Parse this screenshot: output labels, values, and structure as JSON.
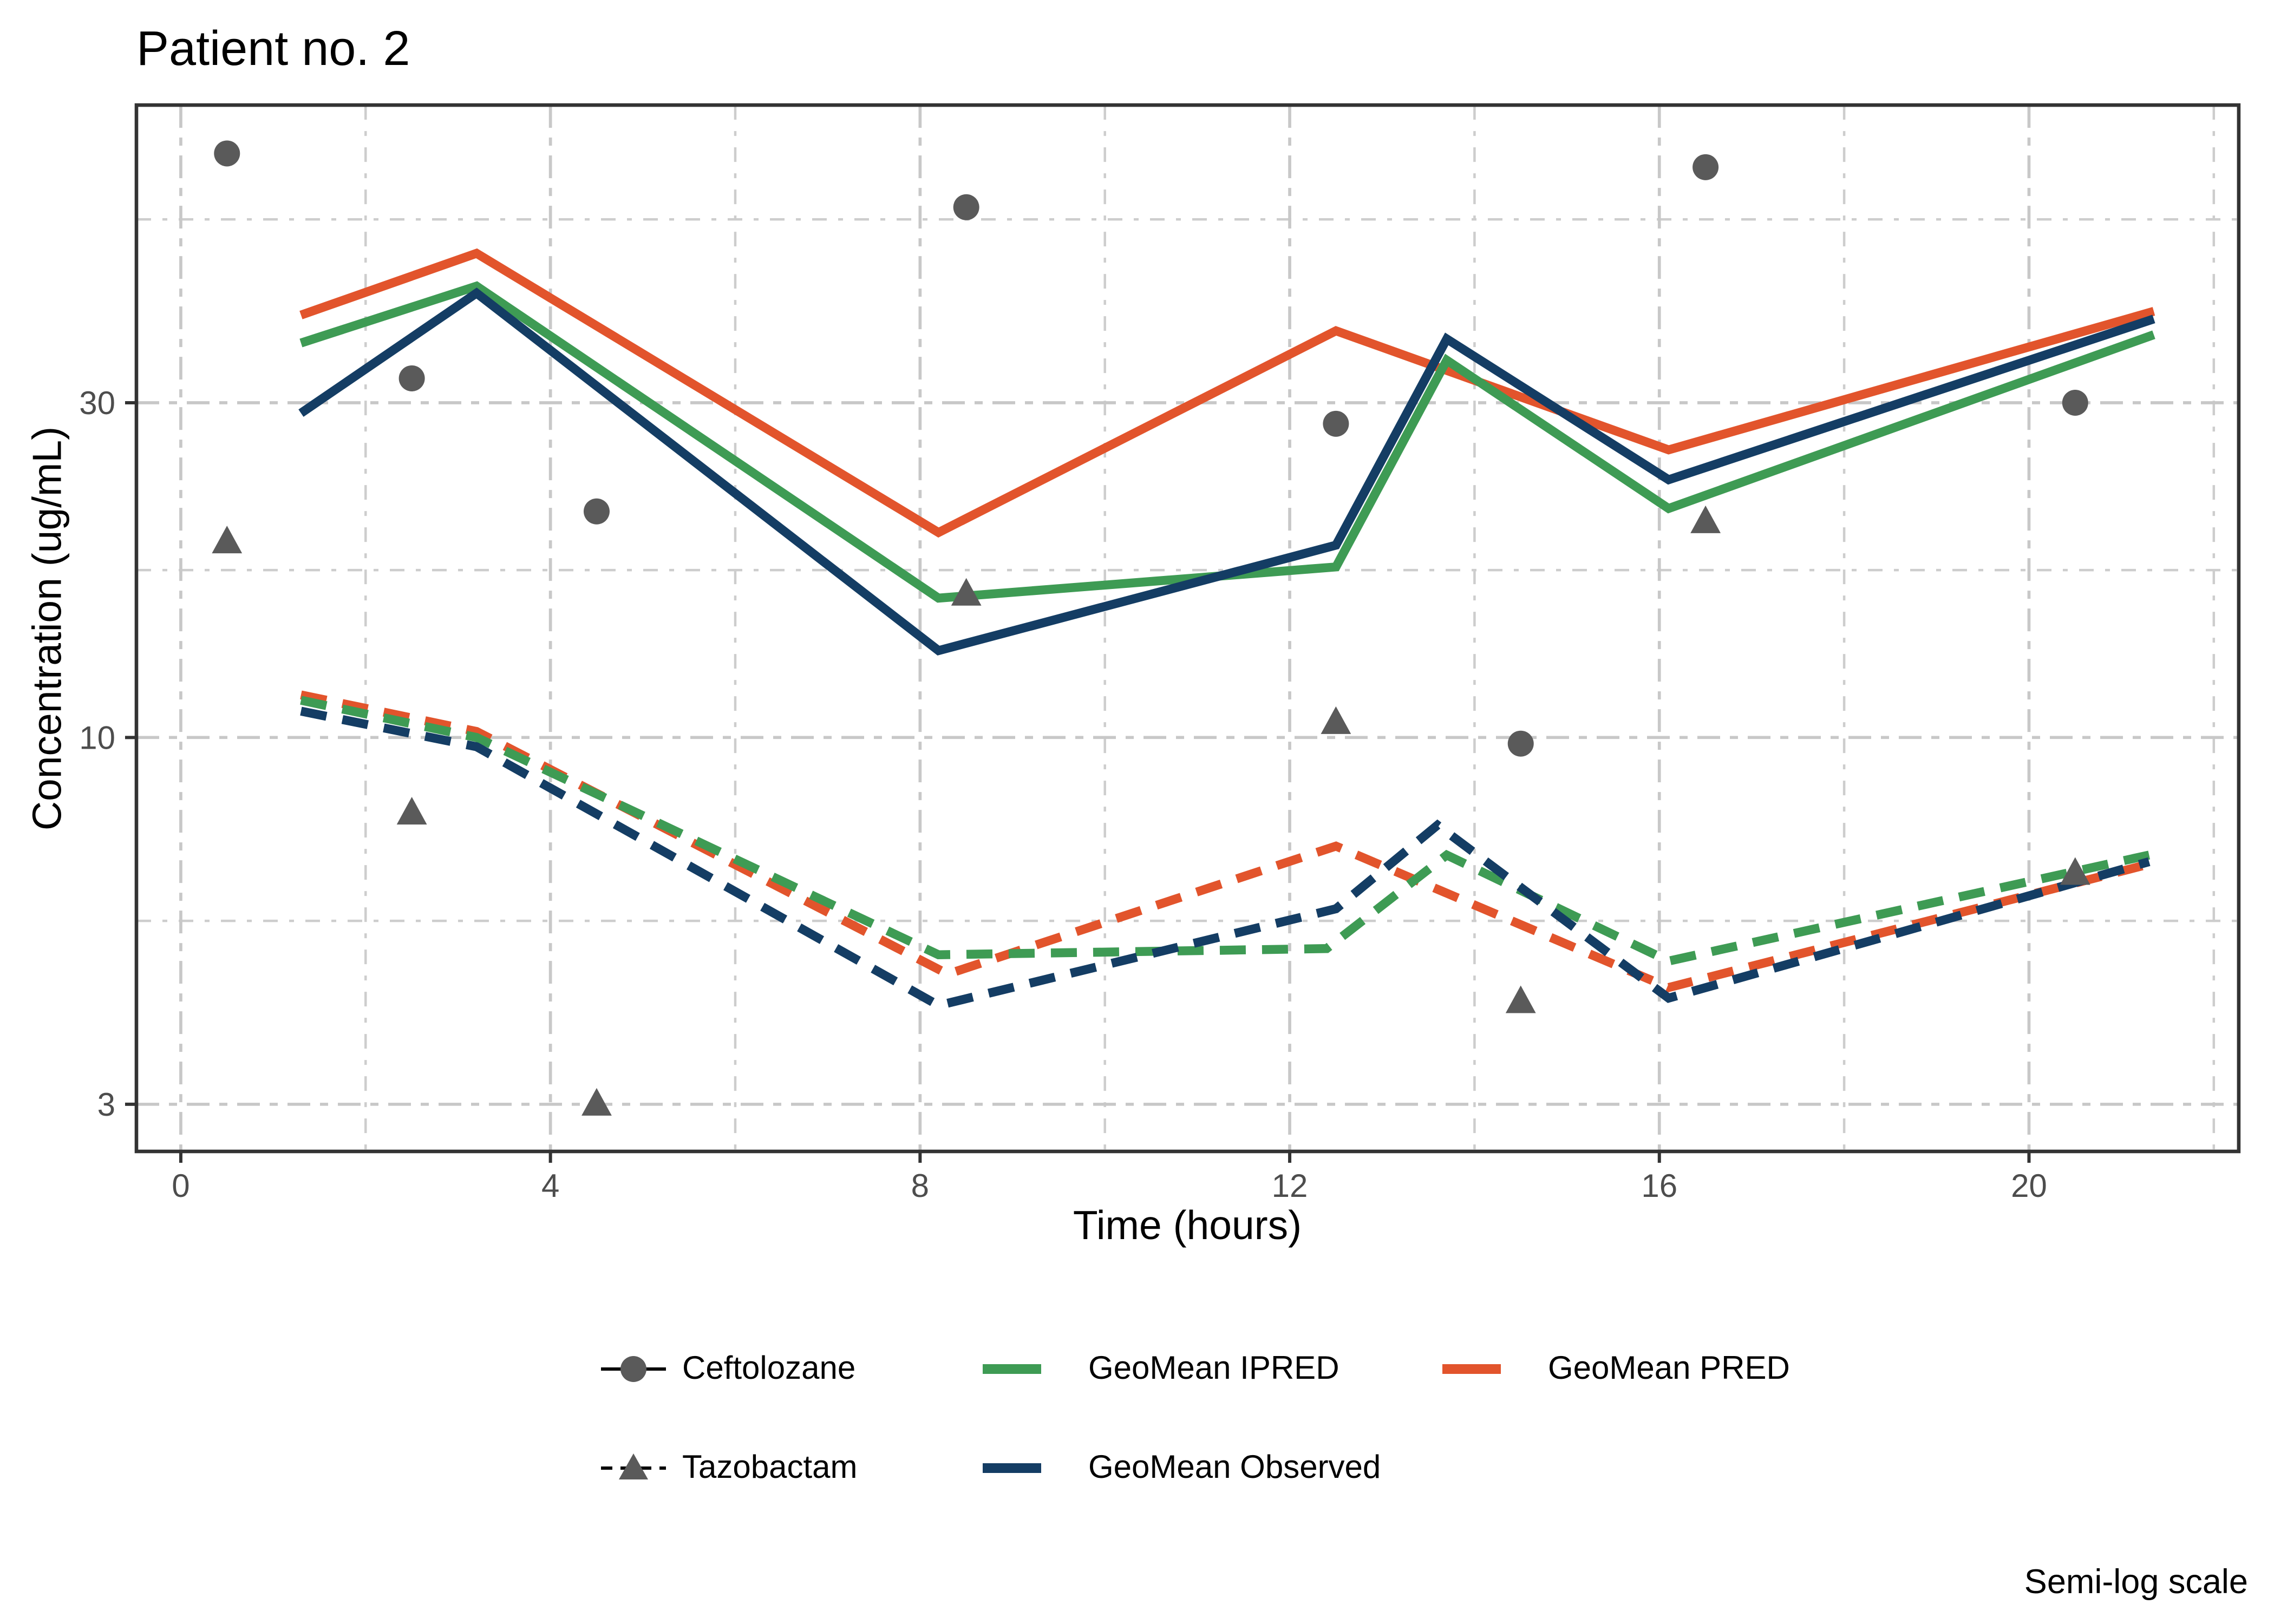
{
  "chart_data": {
    "type": "line",
    "title": "Patient no. 2",
    "xlabel": "Time (hours)",
    "ylabel": "Concentration (ug/mL)",
    "note": "Semi-log scale",
    "log_y": true,
    "grid": true,
    "legend_position": "bottom",
    "xlim": [
      -0.48,
      22.27
    ],
    "ylim": [
      2.57,
      79.7
    ],
    "x_ticks": [
      0,
      4,
      8,
      12,
      16,
      20
    ],
    "x_minor": [
      2,
      6,
      10,
      14,
      18,
      22
    ],
    "y_ticks": [
      3,
      10,
      30
    ],
    "y_minor": [
      5.477,
      17.32,
      54.77
    ],
    "colors": {
      "pred": "#E2542C",
      "ipred": "#3E9B54",
      "observed": "#143D64",
      "marker": "#5A5A5A",
      "grid_major": "#C8C8C8",
      "grid_minor": "#CDCDCD",
      "panel_border": "#333333",
      "tick_label": "#4D4D4D"
    },
    "series": [
      {
        "name": "GeoMean PRED",
        "drug": "Ceftolozane",
        "style": "solid",
        "color": "#E2542C",
        "points": [
          [
            1.3,
            40
          ],
          [
            3.2,
            49
          ],
          [
            8.2,
            19.6
          ],
          [
            12.5,
            38
          ],
          [
            16.1,
            25.7
          ],
          [
            21.35,
            40.5
          ]
        ]
      },
      {
        "name": "GeoMean IPRED",
        "drug": "Ceftolozane",
        "style": "solid",
        "color": "#3E9B54",
        "points": [
          [
            1.3,
            36.5
          ],
          [
            3.2,
            44
          ],
          [
            8.2,
            15.8
          ],
          [
            12.5,
            17.5
          ],
          [
            13.7,
            34.5
          ],
          [
            16.1,
            21.2
          ],
          [
            21.35,
            37.5
          ]
        ]
      },
      {
        "name": "GeoMean Observed",
        "drug": "Ceftolozane",
        "style": "solid",
        "color": "#143D64",
        "points": [
          [
            1.3,
            29
          ],
          [
            3.2,
            43
          ],
          [
            8.2,
            13.3
          ],
          [
            12.5,
            18.8
          ],
          [
            13.7,
            37
          ],
          [
            16.1,
            23.3
          ],
          [
            21.35,
            39.5
          ]
        ]
      },
      {
        "name": "GeoMean PRED",
        "drug": "Tazobactam",
        "style": "dashed",
        "color": "#E2542C",
        "points": [
          [
            1.3,
            11.5
          ],
          [
            3.2,
            10.2
          ],
          [
            8.3,
            4.6
          ],
          [
            12.5,
            7.0
          ],
          [
            16.1,
            4.4
          ],
          [
            21.3,
            6.6
          ]
        ]
      },
      {
        "name": "GeoMean IPRED",
        "drug": "Tazobactam",
        "style": "dashed",
        "color": "#3E9B54",
        "points": [
          [
            1.3,
            11.3
          ],
          [
            3.2,
            10.0
          ],
          [
            8.2,
            4.9
          ],
          [
            12.4,
            5.0
          ],
          [
            13.7,
            6.8
          ],
          [
            16.1,
            4.8
          ],
          [
            21.3,
            6.8
          ]
        ]
      },
      {
        "name": "GeoMean Observed",
        "drug": "Tazobactam",
        "style": "dashed",
        "color": "#143D64",
        "points": [
          [
            1.3,
            10.9
          ],
          [
            3.2,
            9.7
          ],
          [
            8.2,
            4.15
          ],
          [
            12.5,
            5.7
          ],
          [
            13.6,
            7.5
          ],
          [
            16.1,
            4.25
          ],
          [
            21.3,
            6.65
          ]
        ]
      }
    ],
    "scatter": [
      {
        "name": "Ceftolozane",
        "marker": "circle",
        "color": "#5A5A5A",
        "points": [
          [
            0.5,
            68
          ],
          [
            2.5,
            32.5
          ],
          [
            4.5,
            21
          ],
          [
            8.5,
            57
          ],
          [
            12.5,
            28
          ],
          [
            14.5,
            9.8
          ],
          [
            16.5,
            65
          ],
          [
            20.5,
            30
          ]
        ]
      },
      {
        "name": "Tazobactam",
        "marker": "triangle",
        "color": "#5A5A5A",
        "points": [
          [
            0.5,
            19
          ],
          [
            2.5,
            7.8
          ],
          [
            4.5,
            3.0
          ],
          [
            8.5,
            16
          ],
          [
            12.5,
            10.5
          ],
          [
            14.5,
            4.2
          ],
          [
            16.5,
            20.3
          ],
          [
            20.5,
            6.4
          ]
        ]
      }
    ],
    "legend": [
      {
        "label": "Ceftolozane",
        "key": "circle",
        "color": "#5A5A5A"
      },
      {
        "label": "GeoMean IPRED",
        "key": "line",
        "color": "#3E9B54"
      },
      {
        "label": "GeoMean PRED",
        "key": "line",
        "color": "#E2542C"
      },
      {
        "label": "Tazobactam",
        "key": "triangle",
        "color": "#5A5A5A"
      },
      {
        "label": "GeoMean Observed",
        "key": "line",
        "color": "#143D64"
      }
    ]
  }
}
